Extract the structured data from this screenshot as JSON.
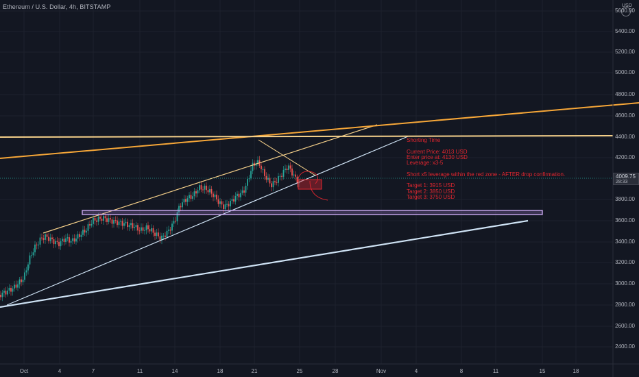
{
  "header": {
    "title": "Ethereum / U.S. Dollar, 4h, BITSTAMP",
    "currency": "USD"
  },
  "price_axis": {
    "labels": [
      "5600.00",
      "5400.00",
      "5200.00",
      "5000.00",
      "4800.00",
      "4600.00",
      "4400.00",
      "4200.00",
      "3800.00",
      "3600.00",
      "3400.00",
      "3200.00",
      "3000.00",
      "2800.00",
      "2600.00",
      "2400.00"
    ],
    "current_price": "4009.75",
    "countdown": "28:33"
  },
  "time_axis": {
    "labels": [
      "Oct",
      "4",
      "7",
      "11",
      "14",
      "18",
      "21",
      "25",
      "28",
      "Nov",
      "4",
      "8",
      "11",
      "15",
      "18"
    ]
  },
  "annotation": {
    "heading": "Shorting Time",
    "current": "Current Price: 4013 USD",
    "enter": "Enter price at: 4130 USD",
    "leverage": "Leverage: x3-5",
    "note": "Short x5 leverage within the red zone - AFTER drop confirmation.",
    "target1": "Target 1: 3915 USD",
    "target2": "Target 2: 3850 USD",
    "target3": "Target 3: 3750 USD"
  },
  "colors": {
    "background": "#131722",
    "up_candle": "#26a69a",
    "down_candle": "#ef5350",
    "orange_line": "#f7a738",
    "light_orange_line": "#f5d08a",
    "trend_blue": "#cfe3f5",
    "purple_zone": "#b189e0",
    "annotation_red": "#e2262f"
  }
}
